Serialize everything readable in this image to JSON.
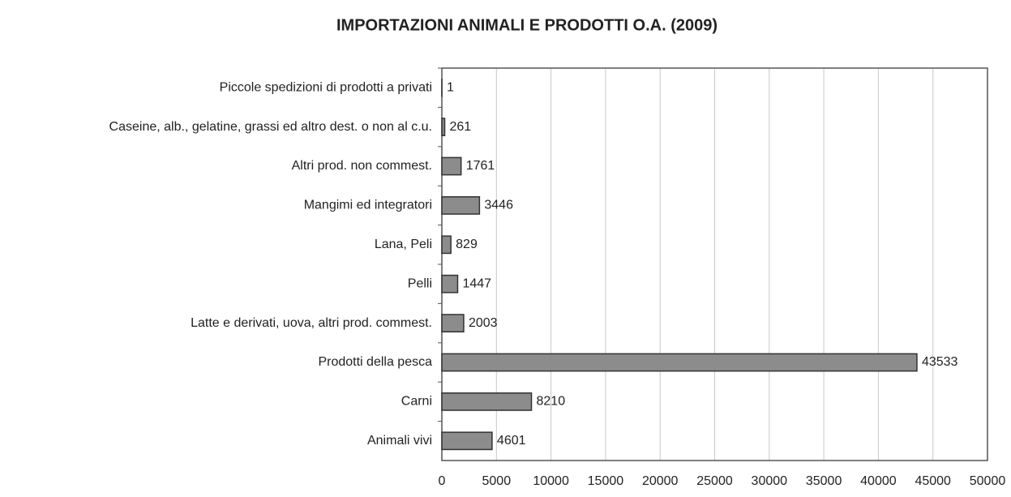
{
  "chart_data": {
    "type": "bar",
    "orientation": "horizontal",
    "title": "IMPORTAZIONI ANIMALI E PRODOTTI O.A. (2009)",
    "categories": [
      "Piccole spedizioni di prodotti a privati",
      "Caseine, alb., gelatine, grassi ed altro dest. o non al c.u.",
      "Altri prod. non commest.",
      "Mangimi ed integratori",
      "Lana, Peli",
      "Pelli",
      "Latte e derivati, uova, altri prod. commest.",
      "Prodotti della pesca",
      "Carni",
      "Animali vivi"
    ],
    "values": [
      1,
      261,
      1761,
      3446,
      829,
      1447,
      2003,
      43533,
      8210,
      4601
    ],
    "color": "#8c8c8c",
    "xlim": [
      0,
      50000
    ],
    "xticks": [
      0,
      5000,
      10000,
      15000,
      20000,
      25000,
      30000,
      35000,
      40000,
      45000,
      50000
    ],
    "grid": true
  }
}
